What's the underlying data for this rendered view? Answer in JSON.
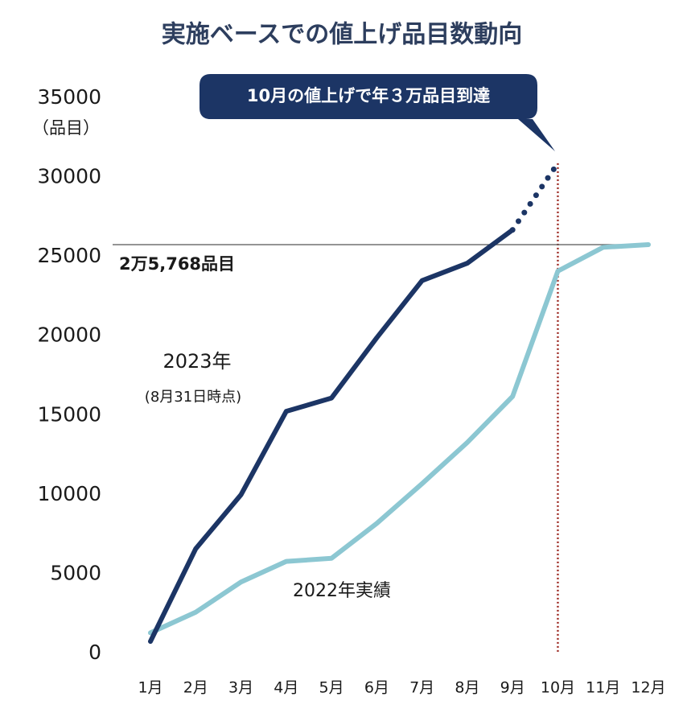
{
  "chart_data": {
    "type": "line",
    "title": "実施ベースでの値上げ品目数動向",
    "annotation": "10月の値上げで年３万品目到達",
    "y_unit": "（品目）",
    "categories": [
      "1月",
      "2月",
      "3月",
      "4月",
      "5月",
      "6月",
      "7月",
      "8月",
      "9月",
      "10月",
      "11月",
      "12月"
    ],
    "series": [
      {
        "name": "2023年",
        "note": "(8月31日時点)",
        "color": "#1c3565",
        "dash_last_segment": true,
        "values": [
          760,
          6600,
          10000,
          15260,
          16100,
          19900,
          23500,
          24600,
          26700,
          30900,
          null,
          null
        ]
      },
      {
        "name": "2022年実績",
        "color": "#8cc7d2",
        "values": [
          1300,
          2600,
          4500,
          5800,
          6000,
          8200,
          10700,
          13300,
          16200,
          24100,
          25600,
          25768
        ]
      }
    ],
    "reference_line": {
      "value": 25768,
      "label": "2万5,768品目",
      "color": "#555555"
    },
    "guide_color": "#a0302a",
    "ylim": [
      0,
      35000
    ],
    "yticks": [
      0,
      5000,
      10000,
      15000,
      20000,
      25000,
      30000,
      35000
    ],
    "grid": false
  }
}
